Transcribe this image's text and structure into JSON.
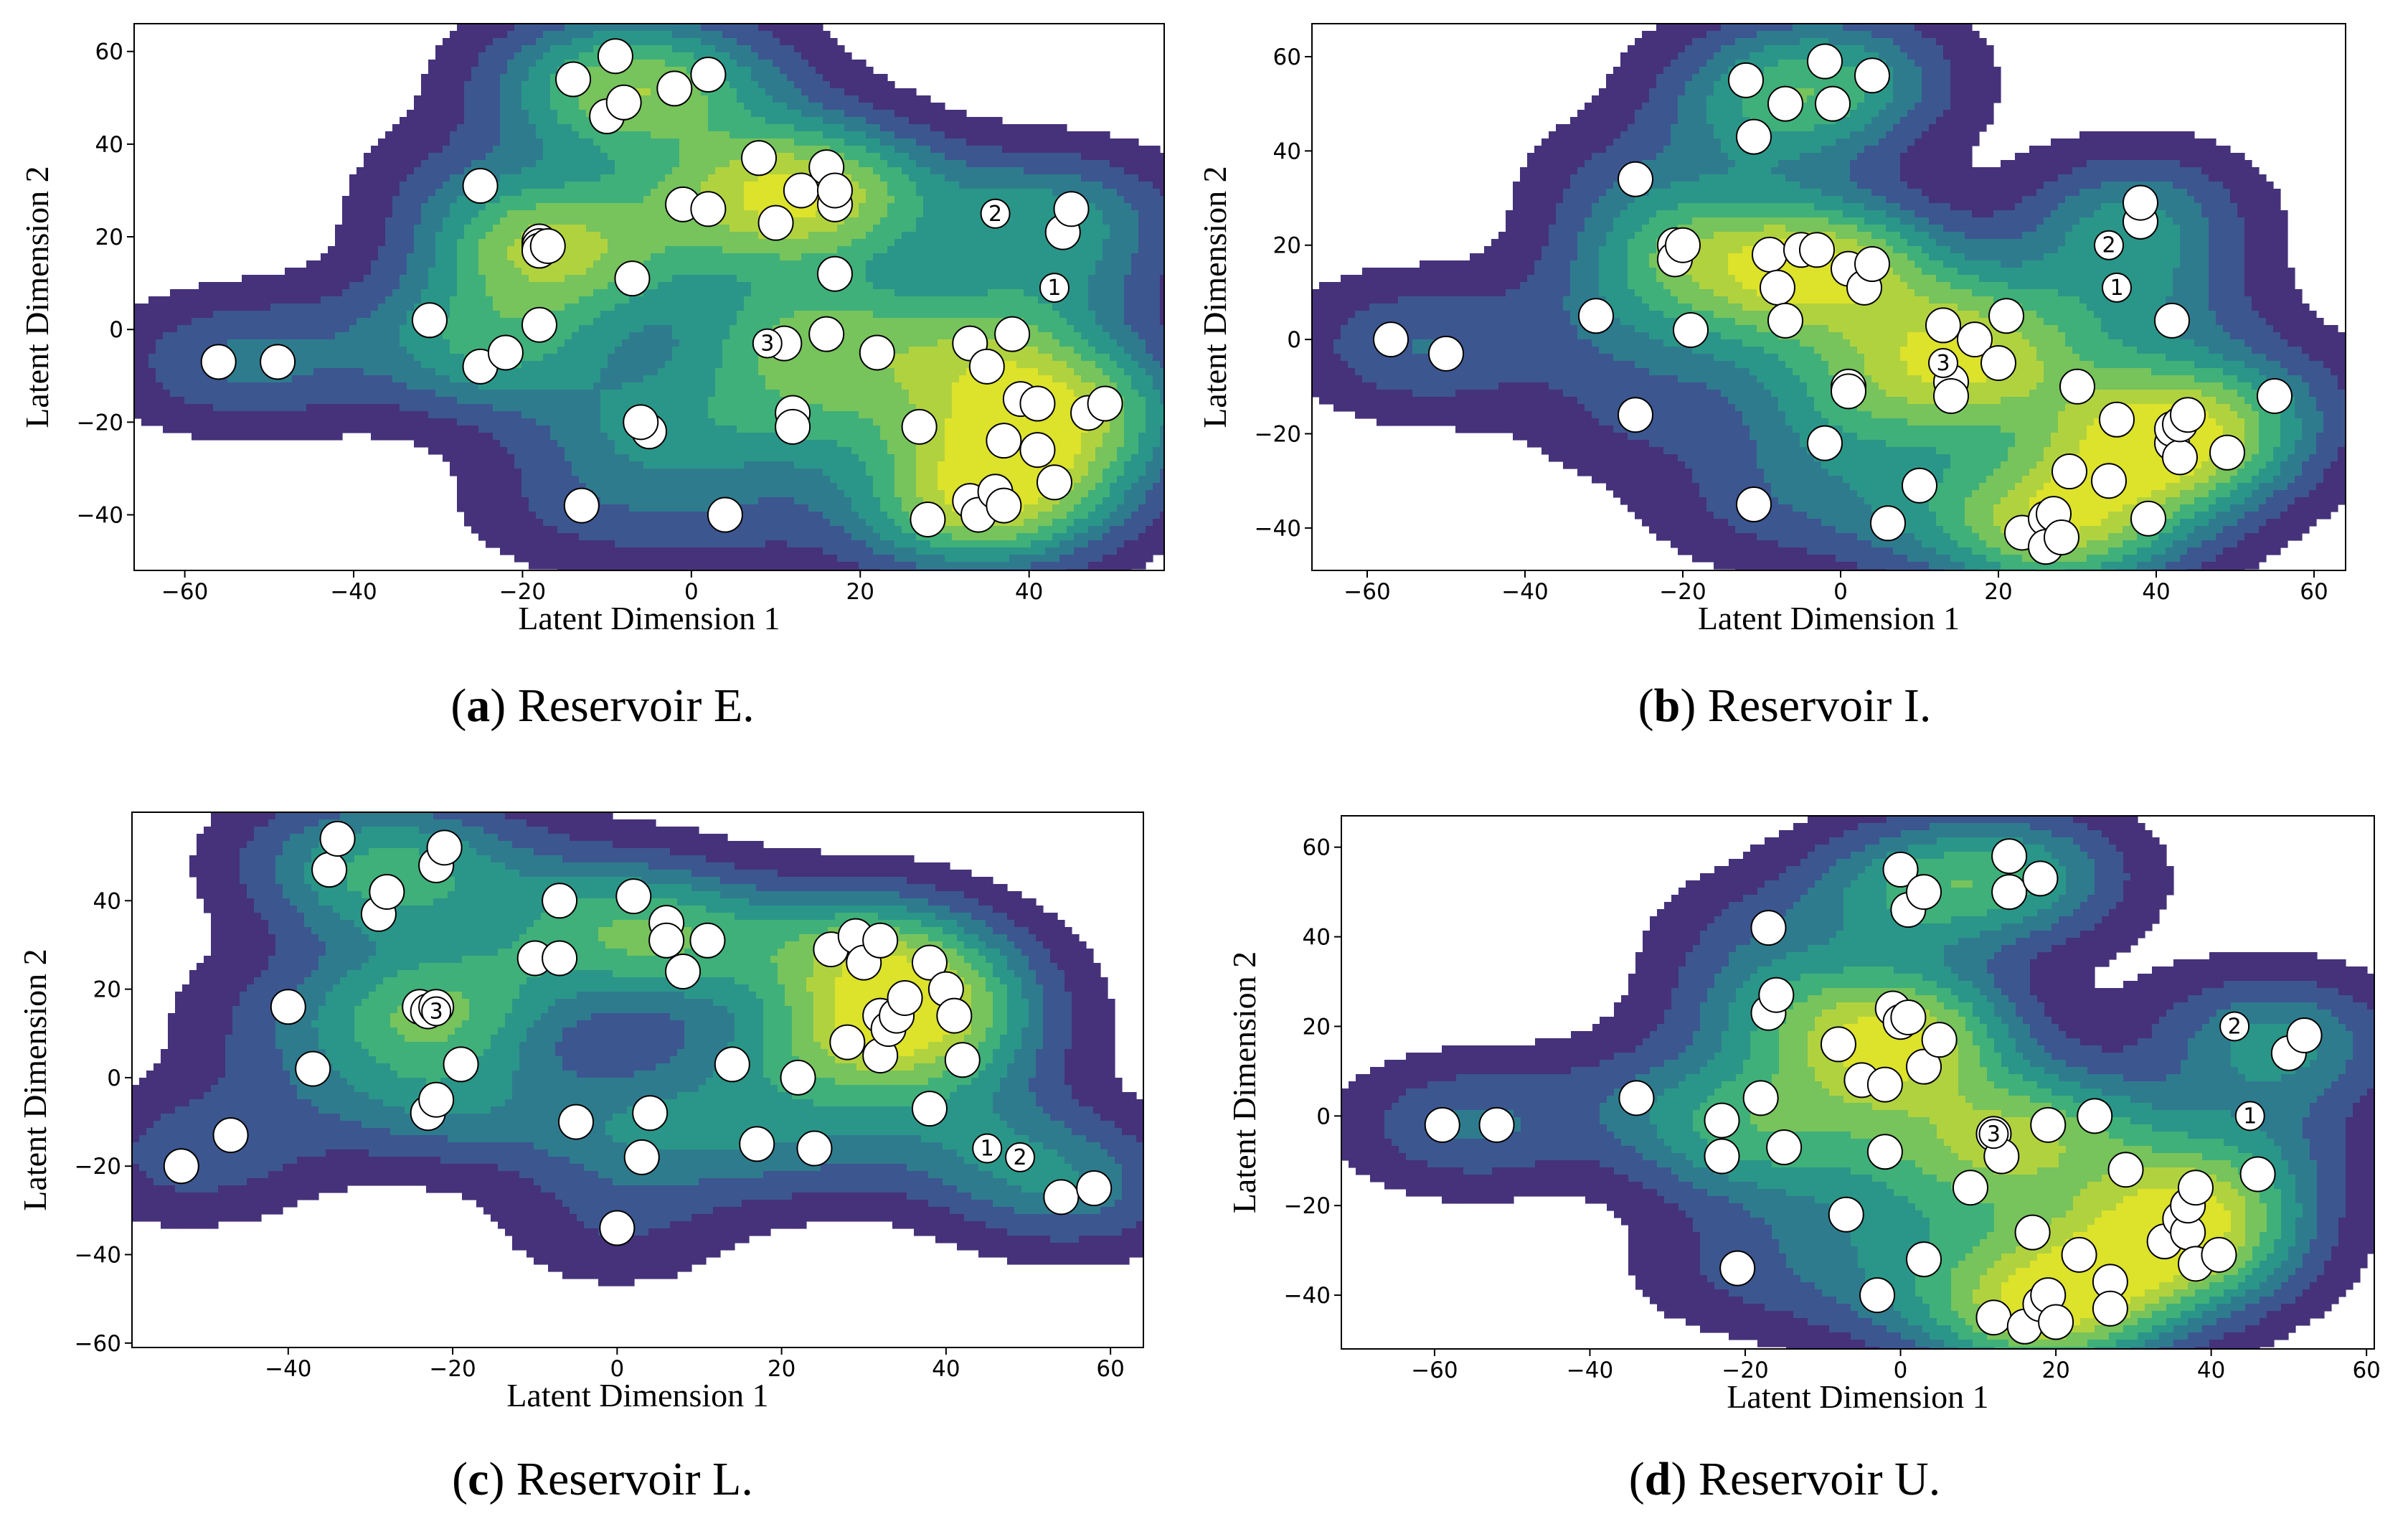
{
  "figure": {
    "colors": {
      "levels": [
        "#45327a",
        "#3c5690",
        "#2f7b8e",
        "#2a9689",
        "#3fb07a",
        "#77c35c",
        "#b1d23f",
        "#dde22a"
      ],
      "marker_fill": "#ffffff",
      "marker_stroke": "#000000"
    }
  },
  "chart_data": [
    {
      "id": "a",
      "type": "scatter",
      "overlay": "kde-contour",
      "caption_letter": "a",
      "caption_text": "Reservoir E.",
      "xlabel": "Latent Dimension 1",
      "ylabel": "Latent Dimension 2",
      "xlim": [
        -66,
        56
      ],
      "ylim": [
        -52,
        66
      ],
      "xticks": [
        -60,
        -40,
        -20,
        0,
        20,
        40
      ],
      "yticks": [
        -40,
        -20,
        0,
        20,
        40,
        60
      ],
      "xtick_labels": [
        "−60",
        "−40",
        "−20",
        "0",
        "20",
        "40"
      ],
      "ytick_labels": [
        "−40",
        "−20",
        "0",
        "20",
        "40",
        "60"
      ],
      "points": [
        [
          -56,
          -7
        ],
        [
          -49,
          -7
        ],
        [
          -31,
          2
        ],
        [
          -25,
          -8
        ],
        [
          -25,
          31
        ],
        [
          -22,
          -5
        ],
        [
          -18,
          19
        ],
        [
          -18,
          18
        ],
        [
          -18,
          17
        ],
        [
          -17,
          18
        ],
        [
          -18,
          1
        ],
        [
          -14,
          54
        ],
        [
          -13,
          -38
        ],
        [
          -10,
          46
        ],
        [
          -9,
          59
        ],
        [
          -8,
          49
        ],
        [
          -7,
          11
        ],
        [
          -5,
          -22
        ],
        [
          -6,
          -20
        ],
        [
          -2,
          52
        ],
        [
          -1,
          27
        ],
        [
          2,
          55
        ],
        [
          2,
          26
        ],
        [
          4,
          -40
        ],
        [
          8,
          37
        ],
        [
          10,
          23
        ],
        [
          11,
          -3
        ],
        [
          12,
          -18
        ],
        [
          12,
          -21
        ],
        [
          13,
          30
        ],
        [
          16,
          35
        ],
        [
          16,
          -1
        ],
        [
          17,
          27
        ],
        [
          17,
          30
        ],
        [
          17,
          12
        ],
        [
          22,
          -5
        ],
        [
          27,
          -21
        ],
        [
          28,
          -41
        ],
        [
          33,
          -3
        ],
        [
          33,
          -37
        ],
        [
          34,
          -40
        ],
        [
          35,
          -8
        ],
        [
          36,
          -35
        ],
        [
          37,
          -38
        ],
        [
          37,
          -24
        ],
        [
          38,
          -1
        ],
        [
          39,
          -15
        ],
        [
          41,
          -16
        ],
        [
          41,
          -26
        ],
        [
          43,
          -33
        ],
        [
          44,
          21
        ],
        [
          45,
          26
        ],
        [
          47,
          -18
        ],
        [
          49,
          -16
        ]
      ],
      "labeled_points": [
        {
          "label": "1",
          "x": 43,
          "y": 9
        },
        {
          "label": "2",
          "x": 36,
          "y": 25
        },
        {
          "label": "3",
          "x": 9,
          "y": -3
        }
      ]
    },
    {
      "id": "b",
      "type": "scatter",
      "overlay": "kde-contour",
      "caption_letter": "b",
      "caption_text": "Reservoir I.",
      "xlabel": "Latent Dimension 1",
      "ylabel": "Latent Dimension 2",
      "xlim": [
        -67,
        64
      ],
      "ylim": [
        -49,
        67
      ],
      "xticks": [
        -60,
        -40,
        -20,
        0,
        20,
        40,
        60
      ],
      "yticks": [
        -40,
        -20,
        0,
        20,
        40,
        60
      ],
      "xtick_labels": [
        "−60",
        "−40",
        "−20",
        "0",
        "20",
        "40",
        "60"
      ],
      "ytick_labels": [
        "−40",
        "−20",
        "0",
        "20",
        "40",
        "60"
      ],
      "points": [
        [
          -57,
          0
        ],
        [
          -50,
          -3
        ],
        [
          -31,
          5
        ],
        [
          -26,
          -16
        ],
        [
          -26,
          34
        ],
        [
          -21,
          20
        ],
        [
          -21,
          17
        ],
        [
          -20,
          20
        ],
        [
          -19,
          2
        ],
        [
          -12,
          55
        ],
        [
          -11,
          43
        ],
        [
          -11,
          -35
        ],
        [
          -9,
          18
        ],
        [
          -8,
          11
        ],
        [
          -7,
          4
        ],
        [
          -7,
          50
        ],
        [
          -5,
          19
        ],
        [
          -3,
          19
        ],
        [
          -2,
          59
        ],
        [
          -1,
          50
        ],
        [
          -2,
          -22
        ],
        [
          1,
          -10
        ],
        [
          1,
          -11
        ],
        [
          1,
          15
        ],
        [
          3,
          11
        ],
        [
          4,
          56
        ],
        [
          4,
          16
        ],
        [
          6,
          -39
        ],
        [
          10,
          -31
        ],
        [
          13,
          3
        ],
        [
          14,
          -9
        ],
        [
          14,
          -12
        ],
        [
          17,
          0
        ],
        [
          20,
          -5
        ],
        [
          21,
          5
        ],
        [
          23,
          -41
        ],
        [
          26,
          -38
        ],
        [
          26,
          -44
        ],
        [
          27,
          -37
        ],
        [
          28,
          -42
        ],
        [
          29,
          -28
        ],
        [
          30,
          -10
        ],
        [
          34,
          -30
        ],
        [
          35,
          -17
        ],
        [
          38,
          25
        ],
        [
          38,
          29
        ],
        [
          39,
          -38
        ],
        [
          42,
          -22
        ],
        [
          42,
          -19
        ],
        [
          43,
          -25
        ],
        [
          43,
          -18
        ],
        [
          44,
          -16
        ],
        [
          42,
          4
        ],
        [
          49,
          -24
        ],
        [
          55,
          -12
        ]
      ],
      "labeled_points": [
        {
          "label": "1",
          "x": 35,
          "y": 11
        },
        {
          "label": "2",
          "x": 34,
          "y": 20
        },
        {
          "label": "3",
          "x": 13,
          "y": -5
        }
      ]
    },
    {
      "id": "c",
      "type": "scatter",
      "overlay": "kde-contour",
      "caption_letter": "c",
      "caption_text": "Reservoir L.",
      "xlabel": "Latent Dimension 1",
      "ylabel": "Latent Dimension 2",
      "xlim": [
        -59,
        64
      ],
      "ylim": [
        -61,
        60
      ],
      "xticks": [
        -40,
        -20,
        0,
        20,
        40,
        60
      ],
      "yticks": [
        -60,
        -40,
        -20,
        0,
        20,
        40
      ],
      "xtick_labels": [
        "−40",
        "−20",
        "0",
        "20",
        "40",
        "60"
      ],
      "ytick_labels": [
        "−60",
        "−40",
        "−20",
        "0",
        "20",
        "40"
      ],
      "points": [
        [
          -53,
          -20
        ],
        [
          -47,
          -13
        ],
        [
          -40,
          16
        ],
        [
          -37,
          2
        ],
        [
          -35,
          47
        ],
        [
          -34,
          54
        ],
        [
          -29,
          37
        ],
        [
          -28,
          42
        ],
        [
          -24,
          16
        ],
        [
          -23,
          15
        ],
        [
          -22,
          16
        ],
        [
          -23,
          -8
        ],
        [
          -22,
          -5
        ],
        [
          -22,
          48
        ],
        [
          -21,
          52
        ],
        [
          -19,
          3
        ],
        [
          -10,
          27
        ],
        [
          -7,
          27
        ],
        [
          -7,
          40
        ],
        [
          -5,
          -10
        ],
        [
          0,
          -34
        ],
        [
          2,
          41
        ],
        [
          3,
          -18
        ],
        [
          4,
          -8
        ],
        [
          6,
          35
        ],
        [
          6,
          31
        ],
        [
          8,
          24
        ],
        [
          11,
          31
        ],
        [
          14,
          3
        ],
        [
          17,
          -15
        ],
        [
          22,
          0
        ],
        [
          24,
          -16
        ],
        [
          26,
          29
        ],
        [
          28,
          8
        ],
        [
          29,
          32
        ],
        [
          30,
          26
        ],
        [
          32,
          31
        ],
        [
          32,
          14
        ],
        [
          32,
          5
        ],
        [
          33,
          11
        ],
        [
          34,
          14
        ],
        [
          35,
          18
        ],
        [
          38,
          26
        ],
        [
          38,
          -7
        ],
        [
          40,
          20
        ],
        [
          41,
          14
        ],
        [
          42,
          4
        ],
        [
          54,
          -27
        ],
        [
          58,
          -25
        ]
      ],
      "labeled_points": [
        {
          "label": "1",
          "x": 45,
          "y": -16
        },
        {
          "label": "2",
          "x": 49,
          "y": -18
        },
        {
          "label": "3",
          "x": -22,
          "y": 15
        }
      ]
    },
    {
      "id": "d",
      "type": "scatter",
      "overlay": "kde-contour",
      "caption_letter": "d",
      "caption_text": "Reservoir U.",
      "xlabel": "Latent Dimension 1",
      "ylabel": "Latent Dimension 2",
      "xlim": [
        -72,
        61
      ],
      "ylim": [
        -52,
        67
      ],
      "xticks": [
        -60,
        -40,
        -20,
        0,
        20,
        40,
        60
      ],
      "yticks": [
        -40,
        -20,
        0,
        20,
        40,
        60
      ],
      "xtick_labels": [
        "−60",
        "−40",
        "−20",
        "0",
        "20",
        "40",
        "60"
      ],
      "ytick_labels": [
        "−40",
        "−20",
        "0",
        "20",
        "40",
        "60"
      ],
      "points": [
        [
          -59,
          -2
        ],
        [
          -52,
          -2
        ],
        [
          -34,
          4
        ],
        [
          -23,
          -1
        ],
        [
          -23,
          -9
        ],
        [
          -21,
          -34
        ],
        [
          -18,
          4
        ],
        [
          -17,
          42
        ],
        [
          -17,
          23
        ],
        [
          -16,
          27
        ],
        [
          -15,
          -7
        ],
        [
          -8,
          16
        ],
        [
          -7,
          -22
        ],
        [
          -5,
          8
        ],
        [
          -3,
          -40
        ],
        [
          -2,
          7
        ],
        [
          -2,
          -8
        ],
        [
          -1,
          24
        ],
        [
          0,
          21
        ],
        [
          0,
          55
        ],
        [
          1,
          22
        ],
        [
          1,
          46
        ],
        [
          3,
          11
        ],
        [
          3,
          -32
        ],
        [
          3,
          50
        ],
        [
          5,
          17
        ],
        [
          9,
          -16
        ],
        [
          12,
          -45
        ],
        [
          12,
          -4
        ],
        [
          13,
          -9
        ],
        [
          14,
          58
        ],
        [
          14,
          50
        ],
        [
          16,
          -47
        ],
        [
          17,
          -26
        ],
        [
          18,
          53
        ],
        [
          18,
          -42
        ],
        [
          19,
          -40
        ],
        [
          20,
          -46
        ],
        [
          19,
          -2
        ],
        [
          23,
          -31
        ],
        [
          25,
          0
        ],
        [
          27,
          -37
        ],
        [
          27,
          -43
        ],
        [
          29,
          -12
        ],
        [
          34,
          -28
        ],
        [
          36,
          -23
        ],
        [
          37,
          -26
        ],
        [
          37,
          -20
        ],
        [
          38,
          -33
        ],
        [
          38,
          -16
        ],
        [
          41,
          -31
        ],
        [
          46,
          -13
        ],
        [
          50,
          14
        ],
        [
          52,
          18
        ]
      ],
      "labeled_points": [
        {
          "label": "1",
          "x": 45,
          "y": 0
        },
        {
          "label": "2",
          "x": 43,
          "y": 20
        },
        {
          "label": "3",
          "x": 12,
          "y": -4
        }
      ]
    }
  ]
}
